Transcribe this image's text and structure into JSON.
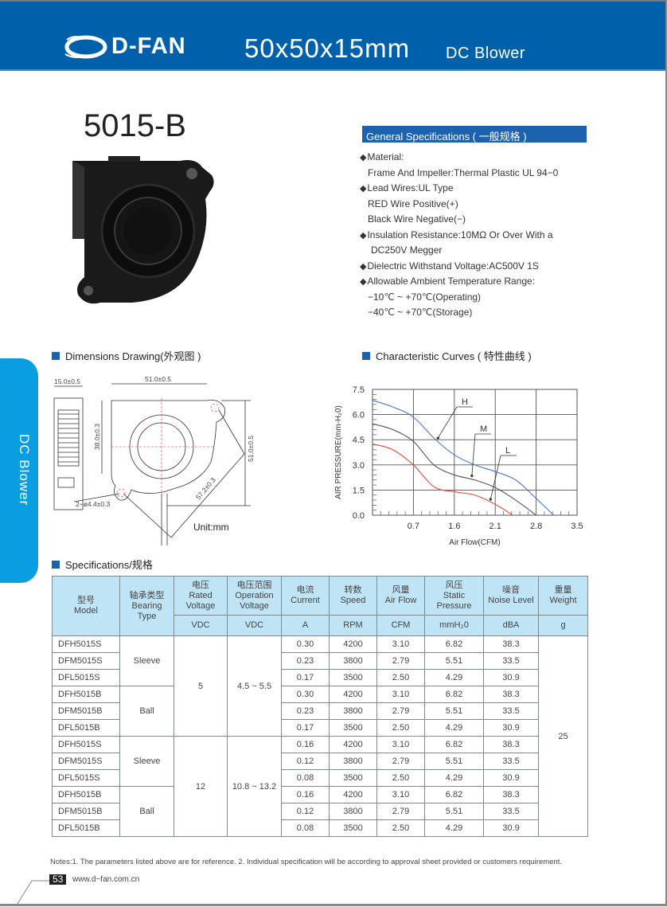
{
  "header": {
    "brand": "D-FAN",
    "title": "50x50x15mm",
    "subtitle": "DC Blower",
    "color": "#0061aa"
  },
  "model": "5015-B",
  "side_tab": {
    "label": "DC Blower",
    "color": "#0a9ee0"
  },
  "general_specs": {
    "title": "General Specifications ( 一般规格 )",
    "lines": [
      {
        "bullet": true,
        "text": "Material:"
      },
      {
        "bullet": false,
        "text": "Frame And Impeller:Thermal Plastic UL 94−0"
      },
      {
        "bullet": true,
        "text": "Lead Wires:UL Type"
      },
      {
        "bullet": false,
        "text": "RED Wire Positive(+)"
      },
      {
        "bullet": false,
        "text": "Black Wire Negative(−)"
      },
      {
        "bullet": true,
        "text": "Insulation Resistance:10MΩ  Or Over With a"
      },
      {
        "bullet": false,
        "text": "DC250V Megger"
      },
      {
        "bullet": true,
        "text": "Dielectric Withstand Voltage:AC500V 1S"
      },
      {
        "bullet": true,
        "text": "Allowable Ambient Temperature Range:"
      },
      {
        "bullet": false,
        "text": "−10℃ ~ +70℃(Operating)"
      },
      {
        "bullet": false,
        "text": "−40℃ ~ +70℃(Storage)"
      }
    ]
  },
  "dimensions": {
    "title": "Dimensions Drawing(外观图 )",
    "labels": {
      "depth": "15.0±0.5",
      "width": "51.0±0.5",
      "height": "51.0±0.5",
      "outlet": "38.0±0.3",
      "holes": "2−ø4.4±0.3",
      "hole_spacing": "57.2±0.3"
    },
    "unit": "Unit:mm"
  },
  "curves": {
    "title": "Characteristic Curves ( 特性曲线 )"
  },
  "chart_data": {
    "type": "line",
    "xlabel": "Air Flow(CFM)",
    "ylabel": "AIR PRESSURE(mm-H₂0)",
    "xlim": [
      0,
      3.5
    ],
    "ylim": [
      0,
      7.5
    ],
    "x_tick_labels": [
      "0.7",
      "1.6",
      "2.1",
      "2.8",
      "3.5"
    ],
    "y_ticks": [
      "0.0",
      "1.5",
      "3.0",
      "4.5",
      "6.0",
      "7.5"
    ],
    "grid": true,
    "series": [
      {
        "name": "H",
        "color": "#4a78c8",
        "x": [
          0,
          0.35,
          0.7,
          1.05,
          1.4,
          1.75,
          2.1,
          2.45,
          2.8,
          3.1
        ],
        "y": [
          6.85,
          6.45,
          5.85,
          4.6,
          3.6,
          3.0,
          2.6,
          2.1,
          1.0,
          0
        ]
      },
      {
        "name": "M",
        "color": "#555555",
        "x": [
          0,
          0.35,
          0.7,
          1.05,
          1.4,
          1.75,
          2.1,
          2.45,
          2.8
        ],
        "y": [
          5.45,
          5.1,
          4.4,
          3.0,
          2.4,
          2.1,
          1.65,
          0.9,
          0
        ]
      },
      {
        "name": "L",
        "color": "#e8453a",
        "x": [
          0,
          0.35,
          0.7,
          1.05,
          1.4,
          1.75,
          2.1,
          2.4
        ],
        "y": [
          4.25,
          3.9,
          3.0,
          1.7,
          1.4,
          1.2,
          0.65,
          0
        ]
      }
    ]
  },
  "specifications": {
    "title": "Specifications/规格",
    "headers": [
      {
        "cn": "型号",
        "en": "Model",
        "unit": null
      },
      {
        "cn": "轴承类型",
        "en": "Bearing Type",
        "unit": null
      },
      {
        "cn": "电压",
        "en": "Rated Voltage",
        "unit": "VDC"
      },
      {
        "cn": "电压范围",
        "en": "Operation Voltage",
        "unit": "VDC"
      },
      {
        "cn": "电流",
        "en": "Current",
        "unit": "A"
      },
      {
        "cn": "转数",
        "en": "Speed",
        "unit": "RPM"
      },
      {
        "cn": "风量",
        "en": "Air Flow",
        "unit": "CFM"
      },
      {
        "cn": "风压",
        "en": "Static Pressure",
        "unit": "mmH₂0"
      },
      {
        "cn": "噪音",
        "en": "Noise Level",
        "unit": "dBA"
      },
      {
        "cn": "重量",
        "en": "Weight",
        "unit": "g"
      }
    ],
    "groups": [
      {
        "rated_voltage": "5",
        "operation_voltage": "4.5 ~ 5.5",
        "bearings": [
          {
            "type": "Sleeve",
            "rows": [
              {
                "model": "DFH5015S",
                "current": "0.30",
                "speed": "4200",
                "airflow": "3.10",
                "pressure": "6.82",
                "noise": "38.3"
              },
              {
                "model": "DFM5015S",
                "current": "0.23",
                "speed": "3800",
                "airflow": "2.79",
                "pressure": "5.51",
                "noise": "33.5"
              },
              {
                "model": "DFL5015S",
                "current": "0.17",
                "speed": "3500",
                "airflow": "2.50",
                "pressure": "4.29",
                "noise": "30.9"
              }
            ]
          },
          {
            "type": "Ball",
            "rows": [
              {
                "model": "DFH5015B",
                "current": "0.30",
                "speed": "4200",
                "airflow": "3.10",
                "pressure": "6.82",
                "noise": "38.3"
              },
              {
                "model": "DFM5015B",
                "current": "0.23",
                "speed": "3800",
                "airflow": "2.79",
                "pressure": "5.51",
                "noise": "33.5"
              },
              {
                "model": "DFL5015B",
                "current": "0.17",
                "speed": "3500",
                "airflow": "2.50",
                "pressure": "4.29",
                "noise": "30.9"
              }
            ]
          }
        ]
      },
      {
        "rated_voltage": "12",
        "operation_voltage": "10.8 ~ 13.2",
        "bearings": [
          {
            "type": "Sleeve",
            "rows": [
              {
                "model": "DFH5015S",
                "current": "0.16",
                "speed": "4200",
                "airflow": "3.10",
                "pressure": "6.82",
                "noise": "38.3"
              },
              {
                "model": "DFM5015S",
                "current": "0.12",
                "speed": "3800",
                "airflow": "2.79",
                "pressure": "5.51",
                "noise": "33.5"
              },
              {
                "model": "DFL5015S",
                "current": "0.08",
                "speed": "3500",
                "airflow": "2.50",
                "pressure": "4.29",
                "noise": "30.9"
              }
            ]
          },
          {
            "type": "Ball",
            "rows": [
              {
                "model": "DFH5015B",
                "current": "0.16",
                "speed": "4200",
                "airflow": "3.10",
                "pressure": "6.82",
                "noise": "38.3"
              },
              {
                "model": "DFM5015B",
                "current": "0.12",
                "speed": "3800",
                "airflow": "2.79",
                "pressure": "5.51",
                "noise": "33.5"
              },
              {
                "model": "DFL5015B",
                "current": "0.08",
                "speed": "3500",
                "airflow": "2.50",
                "pressure": "4.29",
                "noise": "30.9"
              }
            ]
          }
        ]
      }
    ],
    "weight": "25"
  },
  "footer": {
    "notes": "Notes:1. The parameters listed above are for reference.    2. Individual specification will be according to approval sheet provided or customers requirement.",
    "page_number": "53",
    "url": "www.d−fan.com.cn"
  }
}
